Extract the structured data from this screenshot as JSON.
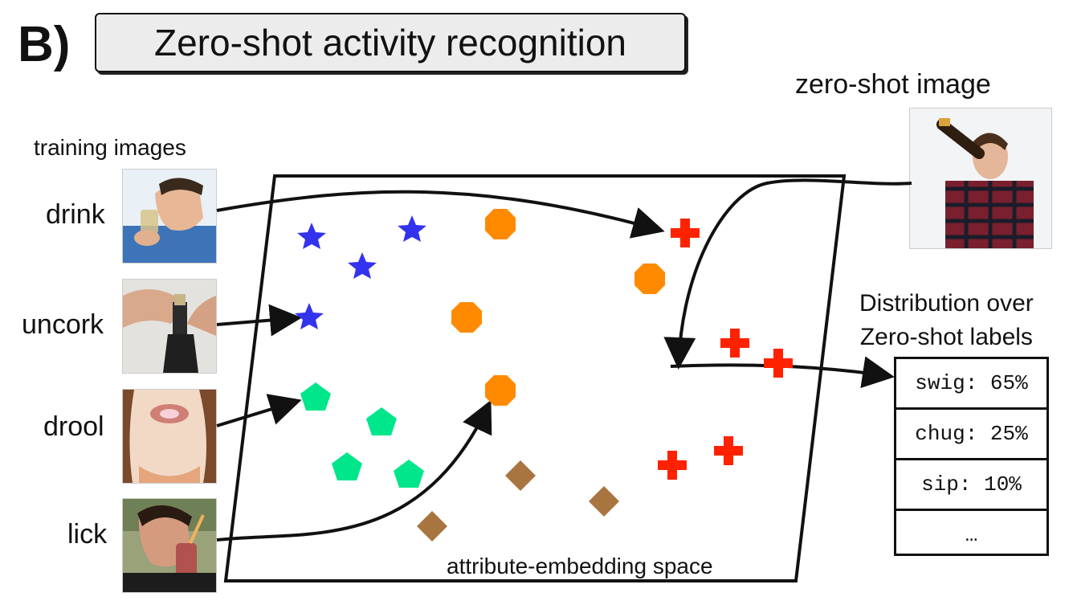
{
  "panel_letter": "B)",
  "title": "Zero-shot activity recognition",
  "training_label": "training images",
  "training_activities": [
    "drink",
    "uncork",
    "drool",
    "lick"
  ],
  "zero_shot_label": "zero-shot image",
  "space_label": "attribute-embedding space",
  "distribution_heading": [
    "Distribution over",
    "Zero-shot labels"
  ],
  "distribution": [
    "swig: 65%",
    "chug: 25%",
    "sip: 10%",
    "…"
  ],
  "colors": {
    "star": "#3333ee",
    "octagon": "#ff8a00",
    "pentagon": "#00e68a",
    "diamond": "#a8743f",
    "cross": "#ff2200"
  }
}
